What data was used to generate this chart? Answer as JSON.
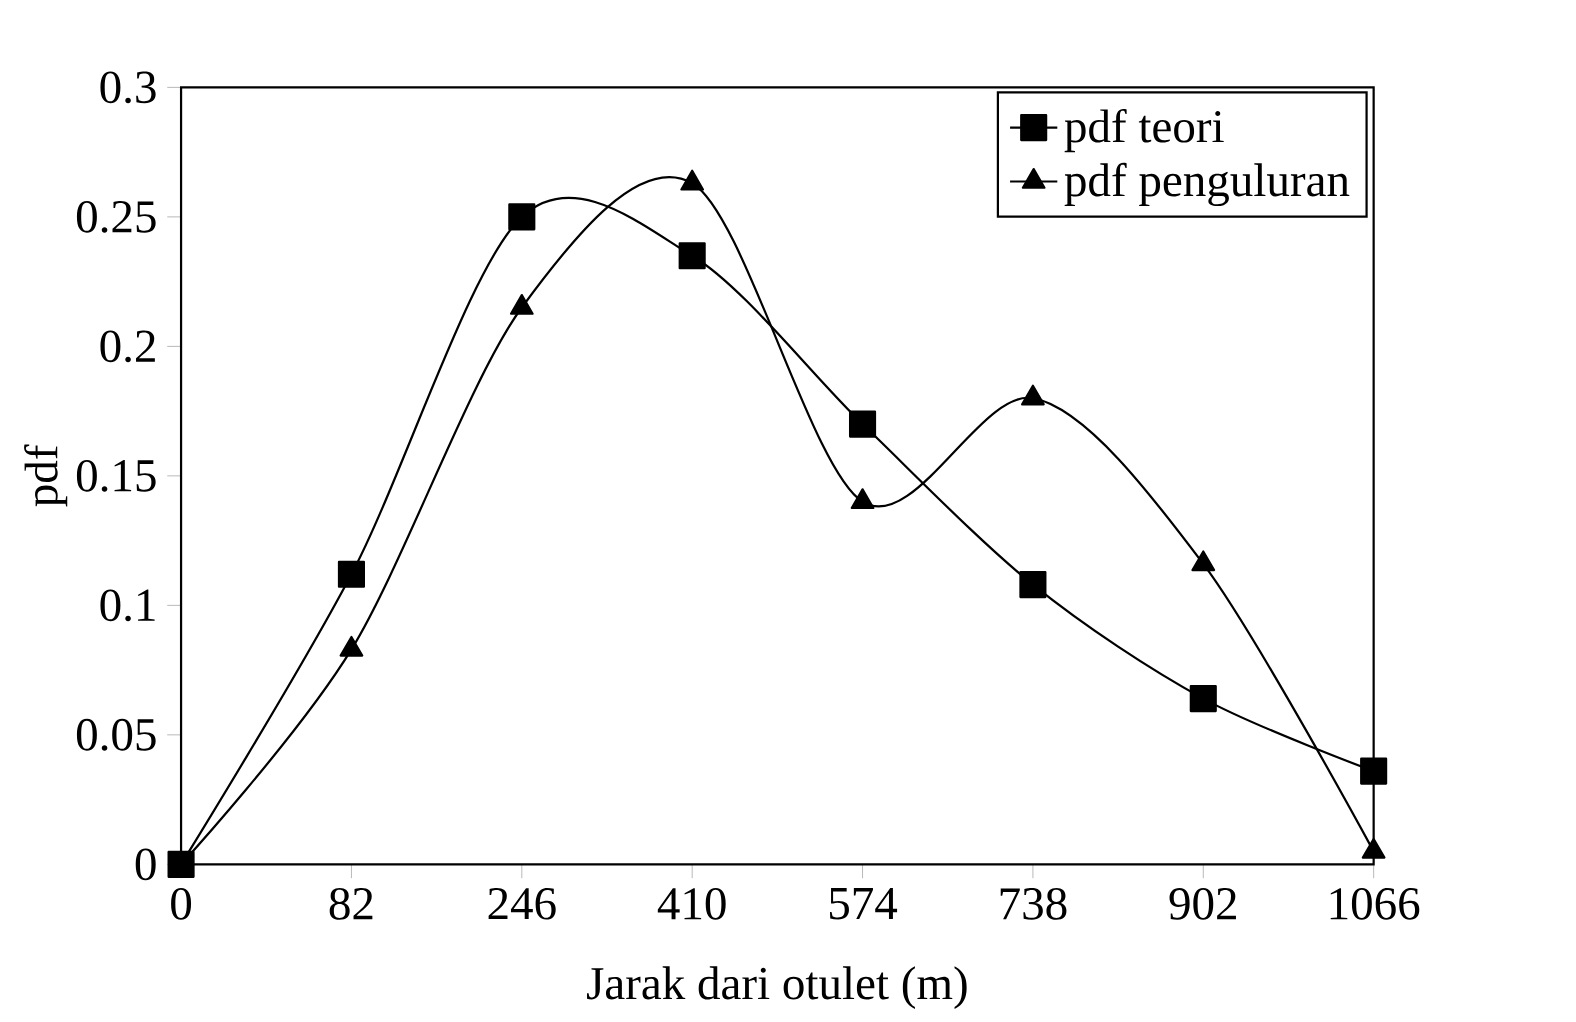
{
  "chart_data": {
    "type": "line",
    "xlabel": "Jarak dari otulet (m)",
    "ylabel": "pdf",
    "categories": [
      "0",
      "82",
      "246",
      "410",
      "574",
      "738",
      "902",
      "1066"
    ],
    "series": [
      {
        "name": "pdf teori",
        "color": "#000000",
        "marker": "square",
        "values": [
          0,
          0.112,
          0.25,
          0.235,
          0.17,
          0.108,
          0.064,
          0.036
        ]
      },
      {
        "name": "pdf penguluran",
        "color": "#000000",
        "marker": "triangle",
        "values": [
          0,
          0.083,
          0.215,
          0.263,
          0.14,
          0.18,
          0.116,
          0.005
        ]
      }
    ],
    "ylim": [
      0,
      0.3
    ],
    "yticks": [
      0,
      0.05,
      0.1,
      0.15,
      0.2,
      0.25,
      0.3
    ],
    "grid": false,
    "legend": "top right",
    "line_style": "solid"
  }
}
